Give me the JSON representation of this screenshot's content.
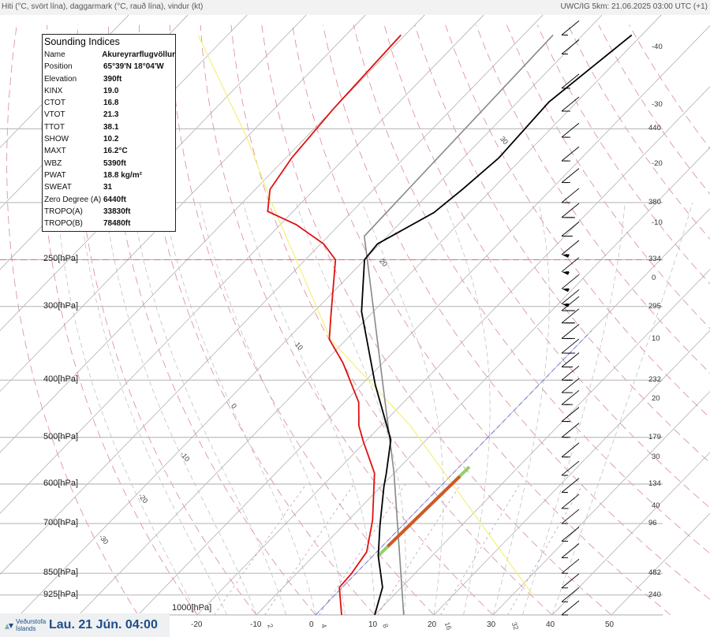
{
  "header": {
    "left_title": "Hiti (°C, svört lína), daggarmark (°C, rauð lína), vindur (kt)",
    "right_title": "UWC/IG 5km: 21.06.2025 03:00 UTC (+1)"
  },
  "indices": {
    "title": "Sounding Indices",
    "rows": [
      {
        "k": "Name",
        "v": "Akureyrarflugvöllur"
      },
      {
        "k": "Position",
        "v": "65°39'N 18°04'W"
      },
      {
        "k": "Elevation",
        "v": "390ft"
      },
      {
        "k": "KINX",
        "v": "19.0"
      },
      {
        "k": "CTOT",
        "v": "16.8"
      },
      {
        "k": "VTOT",
        "v": "21.3"
      },
      {
        "k": "TTOT",
        "v": "38.1"
      },
      {
        "k": "SHOW",
        "v": "10.2"
      },
      {
        "k": "MAXT",
        "v": "16.2°C"
      },
      {
        "k": "WBZ",
        "v": "5390ft"
      },
      {
        "k": "PWAT",
        "v": "18.8 kg/m²"
      },
      {
        "k": "SWEAT",
        "v": "31"
      },
      {
        "k": "Zero Degree (A)",
        "v": "6440ft"
      },
      {
        "k": "TROPO(A)",
        "v": "33830ft"
      },
      {
        "k": "TROPO(B)",
        "v": "78480ft"
      }
    ]
  },
  "footer": {
    "logo_line1": "Veðurstofa",
    "logo_line2": "Íslands",
    "date": "Lau. 21 Jún. 04:00"
  },
  "chart_data": {
    "type": "line",
    "subtype": "skew-T log-p",
    "title": "Hiti (°C, svört lína), daggarmark (°C, rauð lína), vindur (kt)",
    "pressure_labels": [
      {
        "p": 250,
        "label": "250[hPa]"
      },
      {
        "p": 300,
        "label": "300[hPa]"
      },
      {
        "p": 400,
        "label": "400[hPa]"
      },
      {
        "p": 500,
        "label": "500[hPa]"
      },
      {
        "p": 600,
        "label": "600[hPa]"
      },
      {
        "p": 700,
        "label": "700[hPa]"
      },
      {
        "p": 850,
        "label": "850[hPa]"
      },
      {
        "p": 925,
        "label": "925[hPa]"
      },
      {
        "p": 1000,
        "label": "1000[hPa]"
      }
    ],
    "pressure_levels": [
      150,
      200,
      250,
      300,
      400,
      500,
      600,
      700,
      850,
      925,
      1000
    ],
    "height_labels": [
      {
        "p": 150,
        "label": "440"
      },
      {
        "p": 200,
        "label": "380"
      },
      {
        "p": 250,
        "label": "334"
      },
      {
        "p": 300,
        "label": "295"
      },
      {
        "p": 400,
        "label": "232"
      },
      {
        "p": 500,
        "label": "179"
      },
      {
        "p": 600,
        "label": "134"
      },
      {
        "p": 700,
        "label": "96"
      },
      {
        "p": 850,
        "label": "482"
      },
      {
        "p": 925,
        "label": "240"
      }
    ],
    "right_temp_labels": [
      "-40",
      "-30",
      "-20",
      "-10",
      "0",
      "10",
      "20",
      "30",
      "40"
    ],
    "x_ticks": [
      "-20",
      "-10",
      "0",
      "10",
      "20",
      "30",
      "40",
      "50"
    ],
    "isotherm_labels": [
      "30",
      "20",
      "10",
      "0",
      "-10",
      "-20",
      "-30"
    ],
    "mixing_ratio_labels": [
      "2",
      "4",
      "8",
      "16",
      "32"
    ],
    "xlim": [
      -25,
      55
    ],
    "plim": [
      100,
      1000
    ],
    "temperature": [
      [
        1000,
        10.0
      ],
      [
        898,
        6.8
      ],
      [
        794,
        0.9
      ],
      [
        707,
        -3.7
      ],
      [
        606,
        -9.5
      ],
      [
        575,
        -11.3
      ],
      [
        505,
        -16.0
      ],
      [
        407,
        -27.7
      ],
      [
        306,
        -42.0
      ],
      [
        250,
        -50.0
      ],
      [
        235,
        -50.4
      ],
      [
        208,
        -46.0
      ],
      [
        190,
        -45.0
      ],
      [
        168,
        -44.0
      ],
      [
        135,
        -44.7
      ],
      [
        104,
        -41.7
      ]
    ],
    "dewpoint": [
      [
        1000,
        4.4
      ],
      [
        898,
        -0.5
      ],
      [
        852,
        -0.7
      ],
      [
        782,
        -1.7
      ],
      [
        691,
        -5.9
      ],
      [
        575,
        -13.3
      ],
      [
        508,
        -20.4
      ],
      [
        478,
        -23.7
      ],
      [
        436,
        -27.6
      ],
      [
        374,
        -36.7
      ],
      [
        341,
        -42.9
      ],
      [
        311,
        -46.5
      ],
      [
        250,
        -54.9
      ],
      [
        235,
        -59.5
      ],
      [
        218,
        -67.3
      ],
      [
        207,
        -74.3
      ],
      [
        190,
        -77.5
      ],
      [
        168,
        -79.0
      ],
      [
        139,
        -80.0
      ],
      [
        104,
        -80.7
      ]
    ],
    "parcel": [
      [
        1000,
        14.9
      ],
      [
        575,
        -10.0
      ],
      [
        228,
        -53.9
      ],
      [
        104,
        -55.0
      ]
    ],
    "dry_adiabat_surface": [
      [
        926,
        33.5
      ],
      [
        478,
        -15.0
      ],
      [
        341,
        -42.7
      ],
      [
        202,
        -74.5
      ],
      [
        155,
        -90.0
      ],
      [
        104,
        -115.0
      ]
    ],
    "cape_segment": [
      [
        794,
        0.9
      ],
      [
        561,
        1.7
      ]
    ],
    "zero_isotherm": 0,
    "tropopause_p": 250,
    "wind_barbs_kt": [
      [
        104,
        15
      ],
      [
        112,
        15
      ],
      [
        128,
        20
      ],
      [
        140,
        20
      ],
      [
        155,
        20
      ],
      [
        170,
        20
      ],
      [
        185,
        20
      ],
      [
        200,
        25
      ],
      [
        212,
        45
      ],
      [
        228,
        35
      ],
      [
        245,
        55
      ],
      [
        262,
        55
      ],
      [
        280,
        55
      ],
      [
        297,
        55
      ],
      [
        305,
        45
      ],
      [
        320,
        45
      ],
      [
        340,
        40
      ],
      [
        360,
        40
      ],
      [
        380,
        35
      ],
      [
        400,
        35
      ],
      [
        420,
        30
      ],
      [
        440,
        30
      ],
      [
        470,
        25
      ],
      [
        500,
        20
      ],
      [
        540,
        20
      ],
      [
        580,
        15
      ],
      [
        620,
        15
      ],
      [
        660,
        15
      ],
      [
        700,
        15
      ],
      [
        750,
        10
      ],
      [
        800,
        10
      ],
      [
        850,
        10
      ],
      [
        900,
        10
      ],
      [
        950,
        10
      ],
      [
        1000,
        10
      ]
    ],
    "colors": {
      "temperature": "#000000",
      "dewpoint": "#e01010",
      "parcel": "#888888",
      "dry_adiabat_surface": "#f5f07a",
      "zero_isotherm": "#6a6ae0",
      "tropopause": "#e07070"
    }
  }
}
